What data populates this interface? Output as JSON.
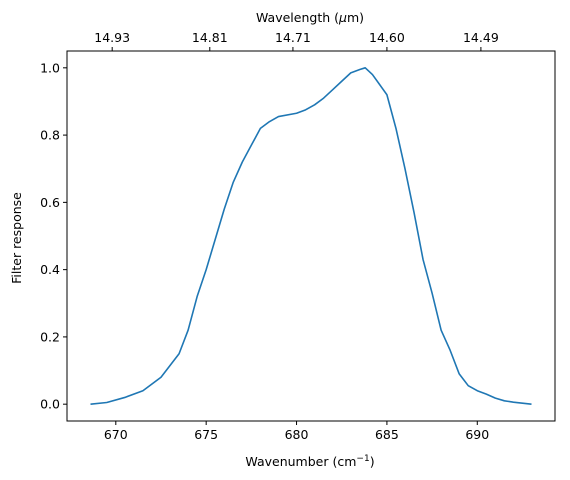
{
  "chart_data": {
    "type": "line",
    "xlabel": "Wavenumber (cm",
    "xlabel_sup": "−1",
    "xlabel_close": ")",
    "ylabel": "Filter response",
    "top_xlabel": "Wavelength (",
    "top_xlabel_mu": "μ",
    "top_xlabel_unit": "m)",
    "xlim": [
      667.3,
      694.3
    ],
    "ylim": [
      -0.05,
      1.05
    ],
    "x_ticks": [
      670,
      675,
      680,
      685,
      690
    ],
    "x_tick_labels": [
      "670",
      "675",
      "680",
      "685",
      "690"
    ],
    "y_ticks": [
      0.0,
      0.2,
      0.4,
      0.6,
      0.8,
      1.0
    ],
    "y_tick_labels": [
      "0.0",
      "0.2",
      "0.4",
      "0.6",
      "0.8",
      "1.0"
    ],
    "top_ticks_wavenumber": [
      669.8,
      675.2,
      679.8,
      685.0,
      690.2
    ],
    "top_tick_labels": [
      "14.93",
      "14.81",
      "14.71",
      "14.60",
      "14.49"
    ],
    "grid": false,
    "color": "#1f77b4",
    "series": [
      {
        "x": [
          668.6,
          669.5,
          670.5,
          671.5,
          672.5,
          673.5,
          674.0,
          674.5,
          675.0,
          675.5,
          676.0,
          676.5,
          677.0,
          677.5,
          678.0,
          678.5,
          679.0,
          680.0,
          680.5,
          681.0,
          681.5,
          682.0,
          682.5,
          683.0,
          683.5,
          683.8,
          684.2,
          684.6,
          685.0,
          685.5,
          686.0,
          686.5,
          687.0,
          687.5,
          688.0,
          688.5,
          689.0,
          689.5,
          690.0,
          690.5,
          691.0,
          691.5,
          692.0,
          693.0
        ],
        "y": [
          0.0,
          0.005,
          0.02,
          0.04,
          0.08,
          0.15,
          0.22,
          0.32,
          0.4,
          0.49,
          0.58,
          0.66,
          0.72,
          0.77,
          0.82,
          0.84,
          0.855,
          0.865,
          0.875,
          0.89,
          0.91,
          0.935,
          0.96,
          0.985,
          0.995,
          1.0,
          0.98,
          0.95,
          0.92,
          0.82,
          0.7,
          0.57,
          0.43,
          0.33,
          0.22,
          0.16,
          0.09,
          0.055,
          0.04,
          0.03,
          0.018,
          0.01,
          0.006,
          0.0
        ]
      }
    ]
  }
}
